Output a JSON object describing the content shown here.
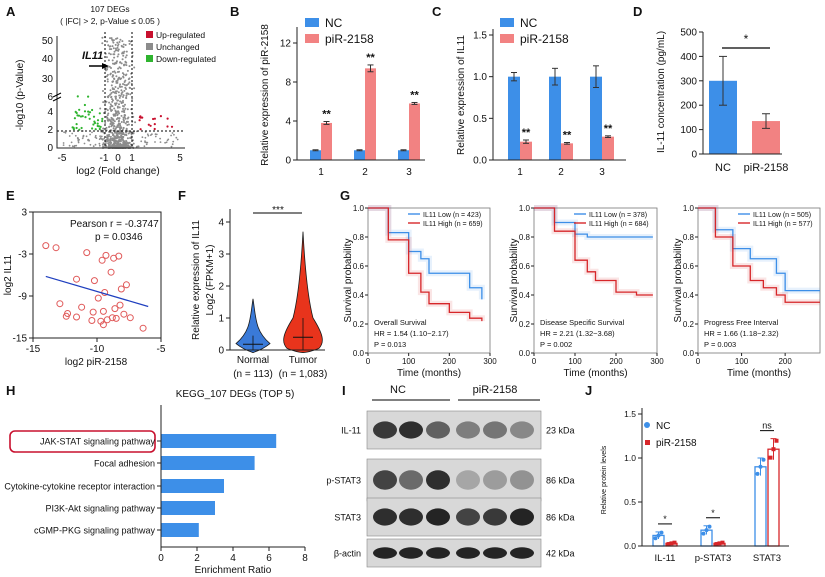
{
  "colors": {
    "blue": "#3d8fe8",
    "red": "#f28282",
    "darkred": "#d7262a",
    "green": "#2fb42f",
    "gray": "#8c8c8c",
    "crimson": "#c8102e",
    "circle": "#e05a5a",
    "line": "#1f3fbf",
    "violin": "#e8341c",
    "violinN": "#3a7ad8"
  },
  "panels": {
    "A": "A",
    "B": "B",
    "C": "C",
    "D": "D",
    "E": "E",
    "F": "F",
    "G": "G",
    "H": "H",
    "I": "I",
    "J": "J"
  },
  "panelA": {
    "title1": "107 DEGs",
    "title2": "( |FC| > 2, p-Value ≤ 0.05 )",
    "legend": [
      "Up-regulated",
      "Unchanged",
      "Down-regulated"
    ],
    "gene": "IL11",
    "ylabel": "-log10 (p-Value)",
    "xlabel": "log2 (Fold change)",
    "xticks": [
      "-5",
      "-1",
      "0",
      "1",
      "5"
    ],
    "yticks": [
      "0",
      "2",
      "4",
      "6",
      "30",
      "40",
      "50"
    ]
  },
  "panelB": {
    "legend": [
      "NC",
      "piR-2158"
    ],
    "ylabel": "Relative expression of piR-2158",
    "categories": [
      "1",
      "2",
      "3"
    ],
    "yticks": [
      "0",
      "4",
      "8",
      "12"
    ],
    "sig": [
      "**",
      "**",
      "**"
    ]
  },
  "panelC": {
    "legend": [
      "NC",
      "piR-2158"
    ],
    "ylabel": "Relative expression of IL11",
    "categories": [
      "1",
      "2",
      "3"
    ],
    "yticks": [
      "0.0",
      "0.5",
      "1.0",
      "1.5"
    ],
    "sig": [
      "**",
      "**",
      "**"
    ]
  },
  "panelD": {
    "ylabel": "IL-11 concentration (pg/mL)",
    "categories": [
      "NC",
      "piR-2158"
    ],
    "yticks": [
      "0",
      "100",
      "200",
      "300",
      "400",
      "500"
    ],
    "sig": "*"
  },
  "panelE": {
    "stat1": "Pearson r = -0.3747",
    "stat2": "p = 0.0346",
    "ylabel": "log2 IL11",
    "xlabel": "log2 piR-2158",
    "xticks": [
      "-15",
      "-10",
      "-5"
    ],
    "yticks": [
      "3",
      "-3",
      "-9",
      "-15"
    ]
  },
  "panelF": {
    "ylabel1": "Relative expression of IL11",
    "ylabel2": "Log2 (FPKM+1)",
    "sig": "***",
    "categories": [
      "Normal",
      "Tumor"
    ],
    "ns": [
      "(n = 113)",
      "(n = 1,083)"
    ],
    "yticks": [
      "0",
      "1",
      "2",
      "3",
      "4"
    ]
  },
  "panelG": {
    "ylabel": "Survival probability",
    "xlabel": "Time (months)",
    "yticks": [
      "0.0",
      "0.2",
      "0.4",
      "0.6",
      "0.8",
      "1.0"
    ],
    "plots": [
      {
        "low": "IL11 Low (n = 423)",
        "high": "IL11 High (n = 659)",
        "endpoint": "Overall Survival",
        "hr": "HR = 1.54 (1.10−2.17)",
        "p": "P = 0.013",
        "xticks": [
          "0",
          "100",
          "200",
          "300"
        ]
      },
      {
        "low": "IL11 Low (n = 378)",
        "high": "IL11 High (n = 684)",
        "endpoint": "Disease Specific Survival",
        "hr": "HR = 2.21 (1.32−3.68)",
        "p": "P = 0.002",
        "xticks": [
          "0",
          "100",
          "200",
          "300"
        ]
      },
      {
        "low": "IL11 Low (n = 505)",
        "high": "IL11 High (n = 577)",
        "endpoint": "Progress Free Interval",
        "hr": "HR = 1.66 (1.18−2.32)",
        "p": "P = 0.003",
        "xticks": [
          "0",
          "100",
          "200"
        ]
      }
    ]
  },
  "panelI": {
    "groups": [
      "NC",
      "piR-2158"
    ],
    "rows": [
      {
        "label": "IL-11",
        "kda": "23 kDa"
      },
      {
        "label": "p-STAT3",
        "kda": "86 kDa"
      },
      {
        "label": "STAT3",
        "kda": "86 kDa"
      },
      {
        "label": "β-actin",
        "kda": "42 kDa"
      }
    ]
  },
  "panelJ": {
    "legend": [
      "NC",
      "piR-2158"
    ],
    "ylabel": "Relative protein levels",
    "categories": [
      "IL-11",
      "p-STAT3",
      "STAT3"
    ],
    "yticks": [
      "0.0",
      "0.5",
      "1.0",
      "1.5"
    ],
    "sig": [
      "*",
      "*",
      "ns"
    ]
  },
  "chart_data": [
    {
      "type": "scatter",
      "panel": "A",
      "title": "107 DEGs",
      "xlabel": "log2 (Fold change)",
      "ylabel": "-log10 (p-Value)",
      "xlim": [
        -5,
        5
      ],
      "annotations": [
        "IL11"
      ],
      "series": [
        {
          "name": "Up-regulated"
        },
        {
          "name": "Unchanged"
        },
        {
          "name": "Down-regulated"
        }
      ]
    },
    {
      "type": "bar",
      "panel": "B",
      "categories": [
        "1",
        "2",
        "3"
      ],
      "ylabel": "Relative expression of piR-2158",
      "ylim": [
        0,
        12
      ],
      "series": [
        {
          "name": "NC",
          "values": [
            1.0,
            1.0,
            1.0
          ],
          "errors": [
            0.05,
            0.05,
            0.05
          ]
        },
        {
          "name": "piR-2158",
          "values": [
            3.8,
            9.4,
            5.8
          ],
          "errors": [
            0.15,
            0.35,
            0.1
          ]
        }
      ]
    },
    {
      "type": "bar",
      "panel": "C",
      "categories": [
        "1",
        "2",
        "3"
      ],
      "ylabel": "Relative expression of IL11",
      "ylim": [
        0,
        1.5
      ],
      "series": [
        {
          "name": "NC",
          "values": [
            1.0,
            1.0,
            1.0
          ],
          "errors": [
            0.05,
            0.1,
            0.13
          ]
        },
        {
          "name": "piR-2158",
          "values": [
            0.22,
            0.2,
            0.28
          ],
          "errors": [
            0.02,
            0.01,
            0.01
          ]
        }
      ]
    },
    {
      "type": "bar",
      "panel": "D",
      "categories": [
        "NC",
        "piR-2158"
      ],
      "ylabel": "IL-11 concentration (pg/mL)",
      "ylim": [
        0,
        500
      ],
      "values": [
        300,
        135
      ],
      "errors": [
        100,
        30
      ]
    },
    {
      "type": "scatter",
      "panel": "E",
      "xlabel": "log2 piR-2158",
      "ylabel": "log2 IL11",
      "xlim": [
        -15,
        -5
      ],
      "ylim": [
        -15,
        3
      ],
      "pearson_r": -0.3747,
      "p": 0.0346,
      "x": [
        -14.0,
        -13.2,
        -12.3,
        -10.8,
        -9.3,
        -9.6,
        -8.7,
        -8.3,
        -8.9,
        -11.6,
        -10.2,
        -9.4,
        -8.1,
        -7.7,
        -12.9,
        -11.2,
        -10.3,
        -9.5,
        -8.6,
        -8.2,
        -9.9,
        -7.9,
        -7.4,
        -6.4,
        -9.5,
        -8.5,
        -12.4,
        -11.6,
        -10.4,
        -9.7,
        -9.2,
        -8.8
      ],
      "y": [
        -1.8,
        -2.1,
        -11.5,
        -2.8,
        -3.2,
        -3.9,
        -3.6,
        -3.3,
        -5.6,
        -6.6,
        -6.8,
        -8.5,
        -8.0,
        -7.4,
        -10.1,
        -10.6,
        -11.3,
        -11.2,
        -10.8,
        -10.3,
        -9.3,
        -11.6,
        -12.1,
        -13.6,
        -13.1,
        -12.2,
        -11.9,
        -12.0,
        -12.5,
        -12.6,
        -12.4,
        -12.1
      ],
      "fit": {
        "x": [
          -14,
          -6
        ],
        "y": [
          -6.2,
          -10.5
        ]
      }
    },
    {
      "type": "violin",
      "panel": "F",
      "categories": [
        "Normal",
        "Tumor"
      ],
      "ylabel": "Relative expression of IL11 Log2 (FPKM+1)",
      "ylim": [
        0,
        4
      ],
      "medians": [
        0.18,
        0.4
      ],
      "n": [
        113,
        1083
      ]
    },
    {
      "type": "line",
      "panel": "G",
      "subtype": "kaplan-meier",
      "xlabel": "Time (months)",
      "ylabel": "Survival probability",
      "series": [
        {
          "name": "Overall Survival",
          "hr": 1.54,
          "p": 0.013,
          "low": {
            "x": [
              0,
              50,
              100,
              130,
              150,
              200,
              250,
              280
            ],
            "y": [
              1.0,
              0.83,
              0.7,
              0.65,
              0.55,
              0.55,
              0.45,
              0.37
            ]
          },
          "high": {
            "x": [
              0,
              50,
              100,
              130,
              150,
              200,
              250,
              280
            ],
            "y": [
              1.0,
              0.78,
              0.55,
              0.42,
              0.34,
              0.28,
              0.24,
              0.22
            ]
          }
        },
        {
          "name": "Disease Specific Survival",
          "hr": 2.21,
          "p": 0.002,
          "low": {
            "x": [
              0,
              50,
              100,
              130,
              150,
              200,
              250,
              290
            ],
            "y": [
              1.0,
              0.9,
              0.82,
              0.8,
              0.8,
              0.8,
              0.8,
              0.8
            ]
          },
          "high": {
            "x": [
              0,
              50,
              100,
              130,
              150,
              200,
              250,
              290
            ],
            "y": [
              1.0,
              0.84,
              0.64,
              0.56,
              0.5,
              0.42,
              0.4,
              0.4
            ]
          }
        },
        {
          "name": "Progress Free Interval",
          "hr": 1.66,
          "p": 0.003,
          "low": {
            "x": [
              0,
              40,
              80,
              120,
              150,
              180,
              200,
              280
            ],
            "y": [
              1.0,
              0.85,
              0.72,
              0.65,
              0.65,
              0.55,
              0.43,
              0.43
            ]
          },
          "high": {
            "x": [
              0,
              40,
              80,
              120,
              150,
              180,
              200,
              280
            ],
            "y": [
              1.0,
              0.8,
              0.6,
              0.5,
              0.45,
              0.4,
              0.35,
              0.35
            ]
          }
        }
      ]
    },
    {
      "type": "bar",
      "panel": "H",
      "title": "KEGG_107 DEGs (TOP 5)",
      "orientation": "horizontal",
      "xlabel": "Enrichment Ratio",
      "xlim": [
        0,
        8
      ],
      "categories": [
        "JAK-STAT signaling pathway",
        "Focal adhesion",
        "Cytokine-cytokine receptor interaction",
        "PI3K-Akt signaling pathway",
        "cGMP-PKG signaling pathway"
      ],
      "values": [
        6.4,
        5.2,
        3.5,
        3.0,
        2.1
      ]
    },
    {
      "type": "table",
      "panel": "I",
      "title": "Western blot",
      "columns": [
        "NC",
        "NC",
        "NC",
        "piR-2158",
        "piR-2158",
        "piR-2158"
      ],
      "rows": [
        "IL-11",
        "p-STAT3",
        "STAT3",
        "β-actin"
      ]
    },
    {
      "type": "bar",
      "panel": "J",
      "categories": [
        "IL-11",
        "p-STAT3",
        "STAT3"
      ],
      "ylabel": "Relative protein levels",
      "ylim": [
        0,
        1.5
      ],
      "series": [
        {
          "name": "NC",
          "values": [
            0.12,
            0.18,
            0.9
          ],
          "errors": [
            0.04,
            0.05,
            0.1
          ]
        },
        {
          "name": "piR-2158",
          "values": [
            0.03,
            0.03,
            1.1
          ],
          "errors": [
            0.01,
            0.01,
            0.12
          ]
        }
      ]
    }
  ]
}
